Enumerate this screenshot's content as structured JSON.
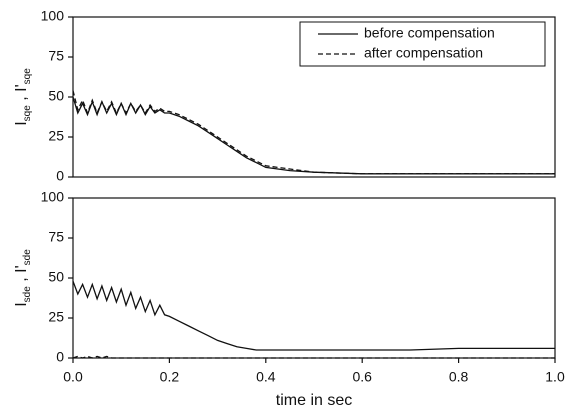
{
  "chart_data": [
    {
      "type": "line",
      "ylabel": [
        "I",
        "sqe",
        " , I'",
        "sqe"
      ],
      "x": [
        0,
        0.01,
        0.02,
        0.03,
        0.04,
        0.05,
        0.06,
        0.07,
        0.08,
        0.09,
        0.1,
        0.11,
        0.12,
        0.13,
        0.14,
        0.15,
        0.16,
        0.17,
        0.18,
        0.19,
        0.2,
        0.22,
        0.24,
        0.26,
        0.28,
        0.3,
        0.32,
        0.34,
        0.36,
        0.38,
        0.4,
        0.45,
        0.5,
        0.6,
        0.7,
        0.8,
        0.9,
        1.0
      ],
      "series": [
        {
          "name": "before compensation",
          "color": "#111111",
          "dash": "solid",
          "values": [
            50,
            40,
            46,
            39,
            47,
            39,
            47,
            40,
            46,
            39,
            46,
            39,
            46,
            40,
            45,
            39,
            44,
            40,
            42,
            40,
            40,
            38,
            35,
            32,
            28,
            24,
            20,
            16,
            12,
            9,
            6,
            4,
            3,
            2,
            2,
            2,
            2,
            2
          ]
        },
        {
          "name": "after compensation",
          "color": "#111111",
          "dash": "dashed",
          "values": [
            54,
            42,
            48,
            40,
            48,
            40,
            47,
            41,
            47,
            40,
            46,
            40,
            46,
            41,
            45,
            40,
            45,
            41,
            43,
            41,
            41,
            39,
            36,
            33,
            29,
            25,
            21,
            17,
            13,
            10,
            7,
            5,
            3,
            2,
            2,
            2,
            2,
            2
          ]
        }
      ],
      "xlim": [
        0,
        1
      ],
      "ylim": [
        0,
        100
      ],
      "yticks": [
        0,
        25,
        50,
        75,
        100
      ],
      "legend": "upper right"
    },
    {
      "type": "line",
      "ylabel": [
        "I",
        "sde",
        " , I'",
        "sde"
      ],
      "xlabel": "time in sec",
      "x": [
        0,
        0.01,
        0.02,
        0.03,
        0.04,
        0.05,
        0.06,
        0.07,
        0.08,
        0.09,
        0.1,
        0.11,
        0.12,
        0.13,
        0.14,
        0.15,
        0.16,
        0.17,
        0.18,
        0.19,
        0.2,
        0.22,
        0.24,
        0.26,
        0.28,
        0.3,
        0.32,
        0.34,
        0.36,
        0.38,
        0.4,
        0.45,
        0.5,
        0.6,
        0.7,
        0.8,
        0.9,
        1.0
      ],
      "series": [
        {
          "color": "#111111",
          "dash": "solid",
          "values": [
            48,
            40,
            46,
            38,
            46,
            37,
            45,
            36,
            44,
            35,
            43,
            33,
            41,
            31,
            38,
            29,
            36,
            27,
            33,
            27,
            26,
            23,
            20,
            17,
            14,
            11,
            9,
            7,
            6,
            5,
            5,
            5,
            5,
            5,
            5,
            6,
            6,
            6
          ]
        },
        {
          "color": "#111111",
          "dash": "dashed",
          "values": [
            0,
            1,
            0,
            1,
            0,
            1,
            0,
            1,
            0,
            0,
            0,
            0,
            0,
            0,
            0,
            0,
            0,
            0,
            0,
            0,
            0,
            0,
            0,
            0,
            0,
            0,
            0,
            0,
            0,
            0,
            0,
            0,
            0,
            0,
            0,
            0,
            0,
            0
          ]
        }
      ],
      "xlim": [
        0,
        1
      ],
      "ylim": [
        0,
        100
      ],
      "yticks": [
        0,
        25,
        50,
        75,
        100
      ],
      "xticks": [
        {
          "value": 0,
          "label": "0.0"
        },
        {
          "value": 0.2,
          "label": "0.2"
        },
        {
          "value": 0.4,
          "label": "0.4"
        },
        {
          "value": 0.6,
          "label": "0.6"
        },
        {
          "value": 0.8,
          "label": "0.8"
        },
        {
          "value": 1,
          "label": "1.0"
        }
      ]
    }
  ]
}
